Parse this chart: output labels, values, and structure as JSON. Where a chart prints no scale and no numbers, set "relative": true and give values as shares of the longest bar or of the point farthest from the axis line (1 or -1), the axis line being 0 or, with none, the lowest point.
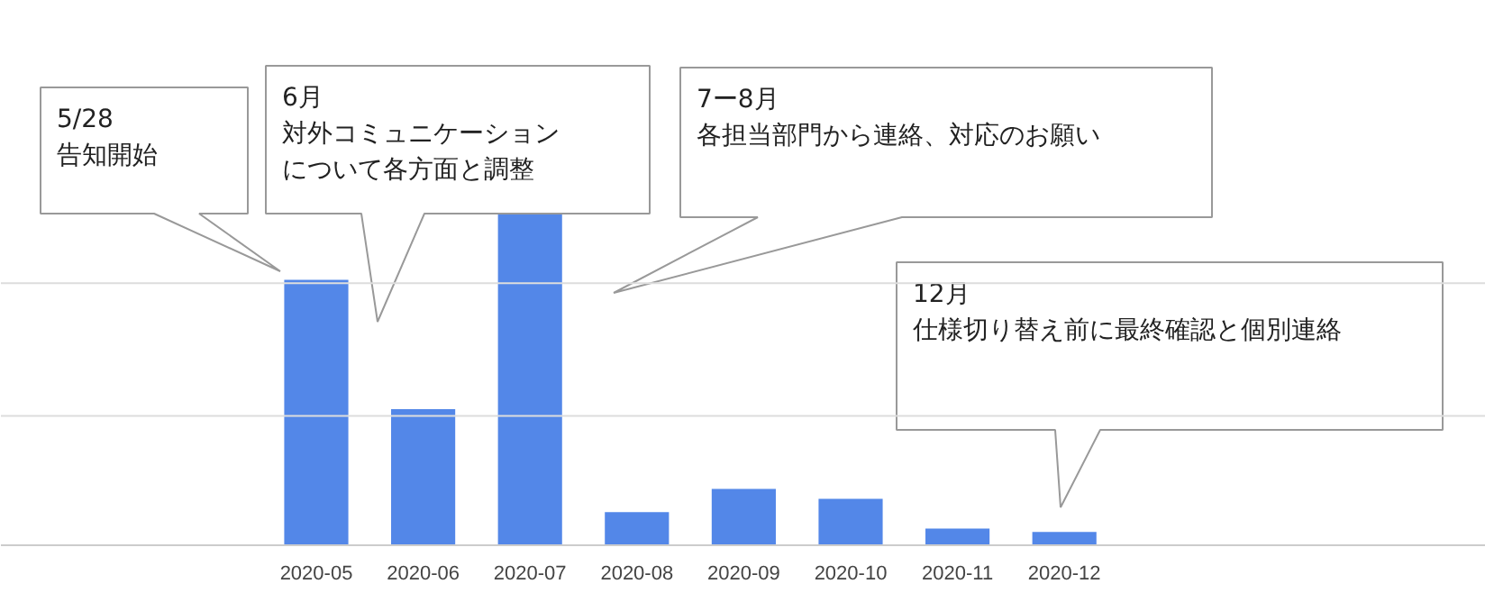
{
  "chart_data": {
    "type": "bar",
    "relative": true,
    "categories": [
      "2020-05",
      "2020-06",
      "2020-07",
      "2020-08",
      "2020-09",
      "2020-10",
      "2020-11",
      "2020-12"
    ],
    "values": [
      0.8,
      0.41,
      1.0,
      0.1,
      0.17,
      0.14,
      0.05,
      0.04
    ],
    "color": "#5387e8",
    "ref_lines": [
      {
        "axis": "y",
        "value": 0.39,
        "color": "#dddddd"
      },
      {
        "axis": "y",
        "value": 0.79,
        "color": "#dddddd"
      }
    ],
    "annotations": [
      "5/28\n告知開始",
      "6月対外コミュニケーションについて各方面と調整",
      "7ー8月各担当部門から連絡、対応のお願い",
      "12月仕様切り替え前に最終確認と個別連絡"
    ]
  }
}
